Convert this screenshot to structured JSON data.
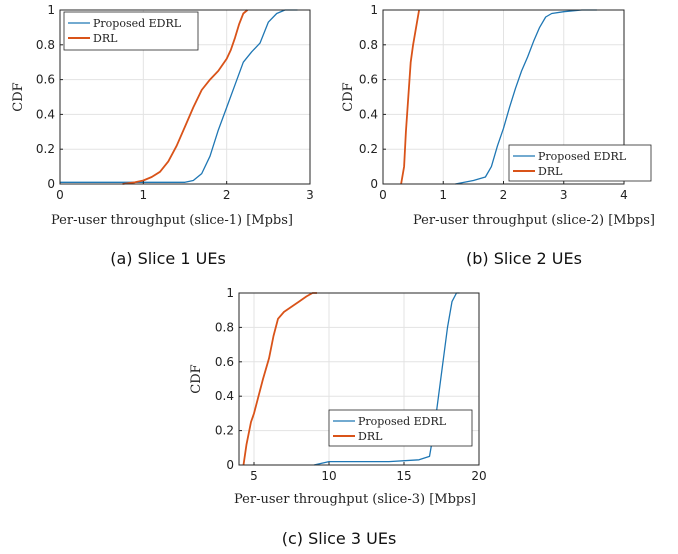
{
  "chart_data": [
    {
      "type": "line",
      "caption": "(a) Slice 1 UEs",
      "xlabel": "Per-user throughput (slice-1) [Mpbs]",
      "ylabel": "CDF",
      "xlim": [
        0,
        3
      ],
      "ylim": [
        0,
        1
      ],
      "xticks": [
        0,
        1,
        2,
        3
      ],
      "yticks": [
        0,
        0.2,
        0.4,
        0.6,
        0.8,
        1
      ],
      "grid": true,
      "legend": "top-left",
      "series": [
        {
          "name": "Proposed EDRL",
          "color": "#1f77b4",
          "x": [
            0,
            1.5,
            1.6,
            1.7,
            1.8,
            1.9,
            2.0,
            2.1,
            2.2,
            2.3,
            2.4,
            2.5,
            2.6,
            2.7,
            2.85
          ],
          "y": [
            0.01,
            0.01,
            0.02,
            0.06,
            0.16,
            0.31,
            0.44,
            0.57,
            0.7,
            0.76,
            0.81,
            0.93,
            0.98,
            1.0,
            1.0
          ]
        },
        {
          "name": "DRL",
          "color": "#d95319",
          "x": [
            0.75,
            0.9,
            1.0,
            1.1,
            1.2,
            1.3,
            1.4,
            1.5,
            1.6,
            1.7,
            1.8,
            1.9,
            2.0,
            2.05,
            2.1,
            2.15,
            2.2,
            2.25
          ],
          "y": [
            0.0,
            0.01,
            0.02,
            0.04,
            0.07,
            0.13,
            0.22,
            0.33,
            0.44,
            0.54,
            0.6,
            0.65,
            0.72,
            0.77,
            0.84,
            0.92,
            0.98,
            1.0
          ]
        }
      ]
    },
    {
      "type": "line",
      "caption": "(b) Slice 2 UEs",
      "xlabel": "Per-user throughput (slice-2) [Mbps]",
      "ylabel": "CDF",
      "xlim": [
        0,
        4
      ],
      "ylim": [
        0,
        1
      ],
      "xticks": [
        0,
        1,
        2,
        3,
        4
      ],
      "yticks": [
        0,
        0.2,
        0.4,
        0.6,
        0.8,
        1
      ],
      "grid": true,
      "legend": "bottom-right",
      "series": [
        {
          "name": "Proposed EDRL",
          "color": "#1f77b4",
          "x": [
            1.2,
            1.5,
            1.7,
            1.8,
            1.9,
            2.0,
            2.1,
            2.2,
            2.3,
            2.4,
            2.5,
            2.6,
            2.7,
            2.8,
            3.0,
            3.3,
            3.55
          ],
          "y": [
            0.0,
            0.02,
            0.04,
            0.1,
            0.22,
            0.32,
            0.44,
            0.55,
            0.65,
            0.73,
            0.82,
            0.9,
            0.96,
            0.98,
            0.99,
            1.0,
            1.0
          ]
        },
        {
          "name": "DRL",
          "color": "#d95319",
          "x": [
            0.3,
            0.35,
            0.38,
            0.42,
            0.46,
            0.5,
            0.55,
            0.6
          ],
          "y": [
            0.0,
            0.1,
            0.3,
            0.5,
            0.7,
            0.8,
            0.9,
            1.0
          ]
        }
      ]
    },
    {
      "type": "line",
      "caption": "(c) Slice 3 UEs",
      "xlabel": "Per-user throughput (slice-3) [Mbps]",
      "ylabel": "CDF",
      "xlim": [
        4,
        20
      ],
      "ylim": [
        0,
        1
      ],
      "xticks": [
        5,
        10,
        15,
        20
      ],
      "yticks": [
        0,
        0.2,
        0.4,
        0.6,
        0.8,
        1
      ],
      "grid": true,
      "legend": "bottom-right",
      "series": [
        {
          "name": "Proposed EDRL",
          "color": "#1f77b4",
          "x": [
            9.0,
            10.0,
            12.0,
            14.0,
            16.0,
            16.7,
            17.0,
            17.3,
            17.6,
            17.9,
            18.2,
            18.5,
            18.7
          ],
          "y": [
            0.0,
            0.02,
            0.02,
            0.02,
            0.03,
            0.05,
            0.2,
            0.4,
            0.6,
            0.8,
            0.95,
            1.0,
            1.0
          ]
        },
        {
          "name": "DRL",
          "color": "#d95319",
          "x": [
            4.3,
            4.5,
            4.8,
            5.0,
            5.3,
            5.6,
            6.0,
            6.3,
            6.6,
            7.0,
            7.5,
            8.0,
            8.5,
            8.9,
            9.2
          ],
          "y": [
            0.0,
            0.12,
            0.25,
            0.3,
            0.4,
            0.5,
            0.62,
            0.75,
            0.85,
            0.89,
            0.92,
            0.95,
            0.98,
            1.0,
            1.0
          ]
        }
      ]
    }
  ]
}
